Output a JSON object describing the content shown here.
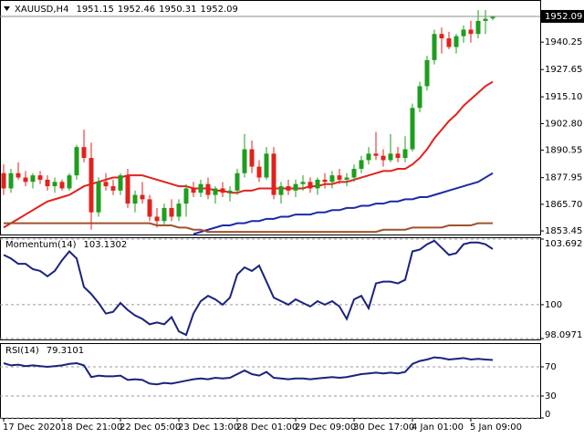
{
  "chart_data": [
    {
      "type": "candlestick",
      "title": "XAUUSD,H4",
      "categories": [
        "17 Dec 2020",
        null,
        null,
        null,
        null,
        null,
        null,
        null,
        "18 Dec 21:00",
        null,
        null,
        null,
        null,
        null,
        null,
        null,
        "22 Dec 05:00",
        null,
        null,
        null,
        null,
        null,
        null,
        null,
        "23 Dec 13:00",
        null,
        null,
        null,
        null,
        null,
        null,
        null,
        "28 Dec 01:00",
        null,
        null,
        null,
        null,
        null,
        null,
        null,
        "29 Dec 09:00",
        null,
        null,
        null,
        null,
        null,
        null,
        null,
        "30 Dec 17:00",
        null,
        null,
        null,
        null,
        null,
        null,
        null,
        "4 Jan 01:00",
        null,
        null,
        null,
        null,
        null,
        null,
        null,
        "5 Jan 09:00",
        null,
        null,
        null
      ],
      "open": [
        1880,
        1873,
        1880,
        1878,
        1876,
        1879,
        1877,
        1874,
        1876,
        1873,
        1879,
        1892,
        1887,
        1862,
        1876,
        1874,
        1872,
        1879,
        1866,
        1870,
        1868,
        1860,
        1858,
        1864,
        1860,
        1866,
        1873,
        1871,
        1875,
        1870,
        1873,
        1871,
        1872,
        1880,
        1891,
        1883,
        1878,
        1889,
        1870,
        1874,
        1872,
        1875,
        1876,
        1873,
        1877,
        1876,
        1879,
        1877,
        1878,
        1882,
        1886,
        1889,
        1888,
        1886,
        1889,
        1887,
        1891,
        1910,
        1920,
        1932,
        1944,
        1942,
        1938,
        1943,
        1946,
        1944,
        1950,
        1951.15
      ],
      "high": [
        1884,
        1882,
        1885,
        1881,
        1880,
        1881,
        1879,
        1878,
        1877,
        1880,
        1893,
        1900,
        1894,
        1878,
        1880,
        1877,
        1880,
        1882,
        1872,
        1876,
        1870,
        1864,
        1866,
        1868,
        1868,
        1875,
        1876,
        1877,
        1878,
        1874,
        1876,
        1874,
        1882,
        1898,
        1895,
        1886,
        1892,
        1892,
        1876,
        1877,
        1877,
        1879,
        1878,
        1878,
        1880,
        1881,
        1882,
        1880,
        1884,
        1888,
        1892,
        1899,
        1891,
        1898,
        1892,
        1897,
        1912,
        1922,
        1934,
        1946,
        1947,
        1945,
        1944,
        1948,
        1950,
        1955,
        1955,
        1952.46
      ],
      "low": [
        1870,
        1871,
        1877,
        1874,
        1873,
        1875,
        1872,
        1871,
        1872,
        1872,
        1877,
        1885,
        1854,
        1860,
        1872,
        1870,
        1870,
        1864,
        1862,
        1866,
        1858,
        1855,
        1856,
        1858,
        1858,
        1860,
        1869,
        1869,
        1868,
        1866,
        1869,
        1867,
        1870,
        1878,
        1880,
        1876,
        1877,
        1868,
        1866,
        1870,
        1869,
        1872,
        1871,
        1870,
        1873,
        1873,
        1875,
        1874,
        1876,
        1880,
        1884,
        1886,
        1883,
        1885,
        1885,
        1885,
        1890,
        1908,
        1918,
        1930,
        1935,
        1937,
        1935,
        1940,
        1940,
        1942,
        1944,
        1950.31
      ],
      "close": [
        1873,
        1880,
        1878,
        1876,
        1879,
        1877,
        1874,
        1876,
        1873,
        1879,
        1892,
        1887,
        1862,
        1876,
        1874,
        1872,
        1879,
        1866,
        1870,
        1868,
        1860,
        1858,
        1864,
        1860,
        1866,
        1873,
        1871,
        1875,
        1870,
        1873,
        1871,
        1872,
        1880,
        1891,
        1883,
        1878,
        1889,
        1870,
        1874,
        1872,
        1875,
        1876,
        1873,
        1877,
        1876,
        1879,
        1877,
        1878,
        1882,
        1886,
        1889,
        1888,
        1886,
        1889,
        1887,
        1891,
        1910,
        1920,
        1932,
        1944,
        1942,
        1938,
        1943,
        1946,
        1944,
        1950,
        1951,
        1952.09
      ],
      "up_color": "#1e9e1e",
      "down_color": "#e3211c",
      "series": [
        {
          "color": "#e3211c",
          "values": [
            1855,
            1857,
            1859,
            1861,
            1863,
            1865,
            1867,
            1868,
            1869,
            1870,
            1872,
            1874,
            1875,
            1876,
            1877,
            1878,
            1878,
            1879,
            1879,
            1879,
            1878,
            1877,
            1876,
            1875,
            1874,
            1874,
            1873,
            1873,
            1873,
            1872,
            1872,
            1871,
            1871,
            1872,
            1872,
            1873,
            1873,
            1873,
            1873,
            1873,
            1873,
            1873,
            1874,
            1874,
            1875,
            1875,
            1876,
            1876,
            1877,
            1878,
            1879,
            1880,
            1881,
            1881,
            1882,
            1882,
            1884,
            1887,
            1891,
            1896,
            1900,
            1904,
            1907,
            1911,
            1914,
            1917,
            1920,
            1922
          ]
        },
        {
          "color": "#1c2aa8",
          "values": [
            null,
            null,
            null,
            null,
            null,
            null,
            null,
            null,
            null,
            null,
            null,
            null,
            null,
            null,
            null,
            null,
            null,
            null,
            null,
            null,
            null,
            null,
            null,
            null,
            null,
            null,
            1852,
            1853,
            1854,
            1855,
            1856,
            1856,
            1857,
            1857,
            1858,
            1858,
            1859,
            1859,
            1860,
            1860,
            1861,
            1861,
            1861,
            1862,
            1862,
            1863,
            1863,
            1864,
            1864,
            1865,
            1865,
            1866,
            1866,
            1867,
            1867,
            1868,
            1868,
            1869,
            1869,
            1870,
            1871,
            1872,
            1873,
            1874,
            1875,
            1876,
            1878,
            1880
          ]
        },
        {
          "color": "#a0522d",
          "values": [
            1857,
            1857,
            1857,
            1857,
            1857,
            1857,
            1857,
            1857,
            1857,
            1857,
            1857,
            1857,
            1857,
            1857,
            1857,
            1857,
            1857,
            1857,
            1857,
            1857,
            1857,
            1856,
            1856,
            1856,
            1855,
            1855,
            1854,
            1854,
            1853,
            1853,
            1853,
            1853,
            1853,
            1853,
            1853,
            1853,
            1853,
            1853,
            1853,
            1853,
            1853,
            1853,
            1853,
            1853,
            1853,
            1853,
            1853,
            1853,
            1853,
            1853,
            1853,
            1853,
            1854,
            1854,
            1854,
            1854,
            1855,
            1855,
            1855,
            1855,
            1855,
            1856,
            1856,
            1856,
            1856,
            1857,
            1857,
            1857
          ]
        }
      ],
      "ylim": [
        1851.8,
        1959.2
      ],
      "yticks": [
        1940.25,
        1927.65,
        {
          "value": 1915.1,
          "label": "1915.10"
        },
        {
          "value": 1902.8,
          "label": "1902.80"
        },
        1890.55,
        1877.95,
        {
          "value": 1865.7,
          "label": "1865.70"
        },
        1853.45
      ]
    },
    {
      "type": "line",
      "title": "Momentum(14)",
      "color": "#1a237e",
      "values": [
        102.8,
        102.6,
        102.3,
        102.3,
        102.0,
        101.9,
        101.6,
        101.9,
        102.5,
        103.0,
        102.6,
        101.0,
        100.6,
        100.1,
        99.5,
        99.6,
        100.1,
        99.7,
        99.4,
        99.2,
        98.9,
        99.0,
        98.9,
        99.3,
        98.5,
        98.3,
        99.5,
        100.2,
        100.5,
        100.3,
        100.0,
        100.4,
        101.7,
        102.1,
        101.9,
        102.2,
        101.3,
        100.4,
        100.2,
        100.0,
        100.3,
        100.1,
        99.9,
        100.2,
        100.0,
        100.2,
        99.9,
        99.2,
        100.3,
        100.5,
        99.8,
        101.2,
        101.3,
        101.3,
        101.2,
        101.4,
        103.0,
        103.1,
        103.4,
        103.6,
        103.2,
        102.8,
        102.9,
        103.4,
        103.5,
        103.5,
        103.4,
        103.1302
      ],
      "ylim": [
        98.0971,
        103.692
      ],
      "yticks": [
        103.692,
        100,
        98.0971
      ],
      "grid": true
    },
    {
      "type": "line",
      "title": "RSI(14)",
      "color": "#1a237e",
      "values": [
        75,
        72,
        73,
        71,
        72,
        71,
        70,
        71,
        72,
        74,
        75,
        72,
        56,
        58,
        57,
        57,
        58,
        52,
        53,
        52,
        47,
        46,
        48,
        47,
        49,
        51,
        53,
        54,
        53,
        55,
        54,
        55,
        60,
        65,
        60,
        58,
        63,
        55,
        54,
        53,
        54,
        54,
        53,
        54,
        55,
        56,
        55,
        56,
        58,
        60,
        61,
        62,
        61,
        62,
        61,
        63,
        74,
        78,
        80,
        83,
        82,
        80,
        81,
        82,
        80,
        81,
        80,
        79.3101
      ],
      "ylim": [
        0,
        100
      ],
      "yticks": [
        70,
        30,
        0
      ],
      "grid": true
    }
  ]
}
